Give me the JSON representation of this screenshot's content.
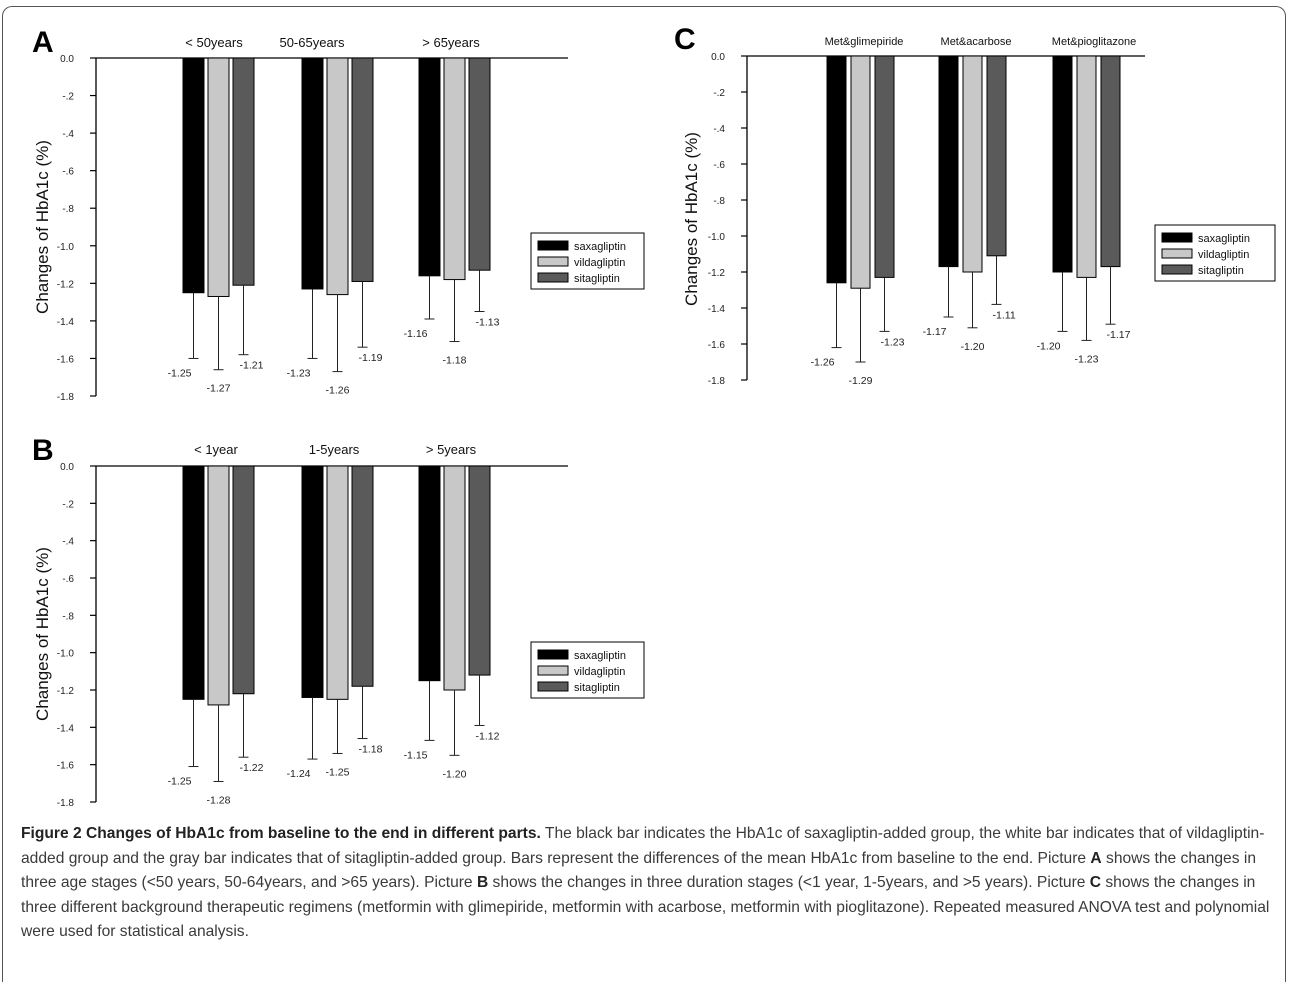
{
  "figure": {
    "legend_items": [
      {
        "label": "saxagliptin",
        "color": "#000000"
      },
      {
        "label": "vildagliptin",
        "color": "#c8c8c8"
      },
      {
        "label": "sitagliptin",
        "color": "#5a5a5a"
      }
    ],
    "ylabel": "Changes of HbA1c (%)"
  },
  "chart_data": [
    {
      "panel": "A",
      "type": "bar",
      "ylabel": "Changes of HbA1c (%)",
      "ylim": [
        -1.8,
        0.0
      ],
      "yticks": [
        "0.0",
        "-.2",
        "-.4",
        "-.6",
        "-.8",
        "-1.0",
        "-1.2",
        "-1.4",
        "-1.6",
        "-1.8"
      ],
      "categories": [
        "< 50years",
        "50-65years",
        "> 65years"
      ],
      "series": [
        {
          "name": "saxagliptin",
          "values": [
            -1.25,
            -1.23,
            -1.16
          ],
          "labels": [
            "-1.25",
            "-1.23",
            "-1.16"
          ],
          "err": [
            0.35,
            0.37,
            0.23
          ]
        },
        {
          "name": "vildagliptin",
          "values": [
            -1.27,
            -1.26,
            -1.18
          ],
          "labels": [
            "-1.27",
            "-1.26",
            "-1.18"
          ],
          "err": [
            0.39,
            0.41,
            0.33
          ]
        },
        {
          "name": "sitagliptin",
          "values": [
            -1.21,
            -1.19,
            -1.13
          ],
          "labels": [
            "-1.21",
            "-1.19",
            "-1.13"
          ],
          "err": [
            0.37,
            0.35,
            0.22
          ]
        }
      ],
      "legend": "right"
    },
    {
      "panel": "B",
      "type": "bar",
      "ylabel": "Changes of HbA1c (%)",
      "ylim": [
        -1.8,
        0.0
      ],
      "yticks": [
        "0.0",
        "-.2",
        "-.4",
        "-.6",
        "-.8",
        "-1.0",
        "-1.2",
        "-1.4",
        "-1.6",
        "-1.8"
      ],
      "categories": [
        "< 1year",
        "1-5years",
        "> 5years"
      ],
      "series": [
        {
          "name": "saxagliptin",
          "values": [
            -1.25,
            -1.24,
            -1.15
          ],
          "labels": [
            "-1.25",
            "-1.24",
            "-1.15"
          ],
          "err": [
            0.36,
            0.33,
            0.32
          ]
        },
        {
          "name": "vildagliptin",
          "values": [
            -1.28,
            -1.25,
            -1.2
          ],
          "labels": [
            "-1.28",
            "-1.25",
            "-1.20"
          ],
          "err": [
            0.41,
            0.29,
            0.35
          ]
        },
        {
          "name": "sitagliptin",
          "values": [
            -1.22,
            -1.18,
            -1.12
          ],
          "labels": [
            "-1.22",
            "-1.18",
            "-1.12"
          ],
          "err": [
            0.34,
            0.28,
            0.27
          ]
        }
      ],
      "legend": "right"
    },
    {
      "panel": "C",
      "type": "bar",
      "ylabel": "Changes of HbA1c (%)",
      "ylim": [
        -1.8,
        0.0
      ],
      "yticks": [
        "0.0",
        "-.2",
        "-.4",
        "-.6",
        "-.8",
        "-1.0",
        "-1.2",
        "-1.4",
        "-1.6",
        "-1.8"
      ],
      "categories": [
        "Met&glimepiride",
        "Met&acarbose",
        "Met&pioglitazone"
      ],
      "series": [
        {
          "name": "saxagliptin",
          "values": [
            -1.26,
            -1.17,
            -1.2
          ],
          "labels": [
            "-1.26",
            "-1.17",
            "-1.20"
          ],
          "err": [
            0.36,
            0.28,
            0.33
          ]
        },
        {
          "name": "vildagliptin",
          "values": [
            -1.29,
            -1.2,
            -1.23
          ],
          "labels": [
            "-1.29",
            "-1.20",
            "-1.23"
          ],
          "err": [
            0.41,
            0.31,
            0.35
          ]
        },
        {
          "name": "sitagliptin",
          "values": [
            -1.23,
            -1.11,
            -1.17
          ],
          "labels": [
            "-1.23",
            "-1.11",
            "-1.17"
          ],
          "err": [
            0.3,
            0.27,
            0.32
          ]
        }
      ],
      "legend": "right"
    }
  ],
  "caption": {
    "title": "Figure 2 Changes of HbA1c from baseline to the end in different parts.",
    "text1": " The black bar indicates the HbA1c of saxagliptin-added group, the white bar indicates that of vildagliptin-added group and the gray bar indicates that of sitagliptin-added group. Bars represent the differences of the mean HbA1c from baseline to the end. Picture ",
    "a": "A",
    "text2": " shows the changes in three age stages (<50 years, 50-64years, and >65 years). Picture ",
    "b": "B",
    "text3": " shows the changes in three duration stages (<1 year, 1-5years, and >5 years). Picture ",
    "c": "C",
    "text4": " shows the changes in three different background therapeutic regimens (metformin with glimepiride, metformin with acarbose, metformin with pioglitazone). Repeated measured ANOVA test and polynomial were used for statistical analysis."
  }
}
